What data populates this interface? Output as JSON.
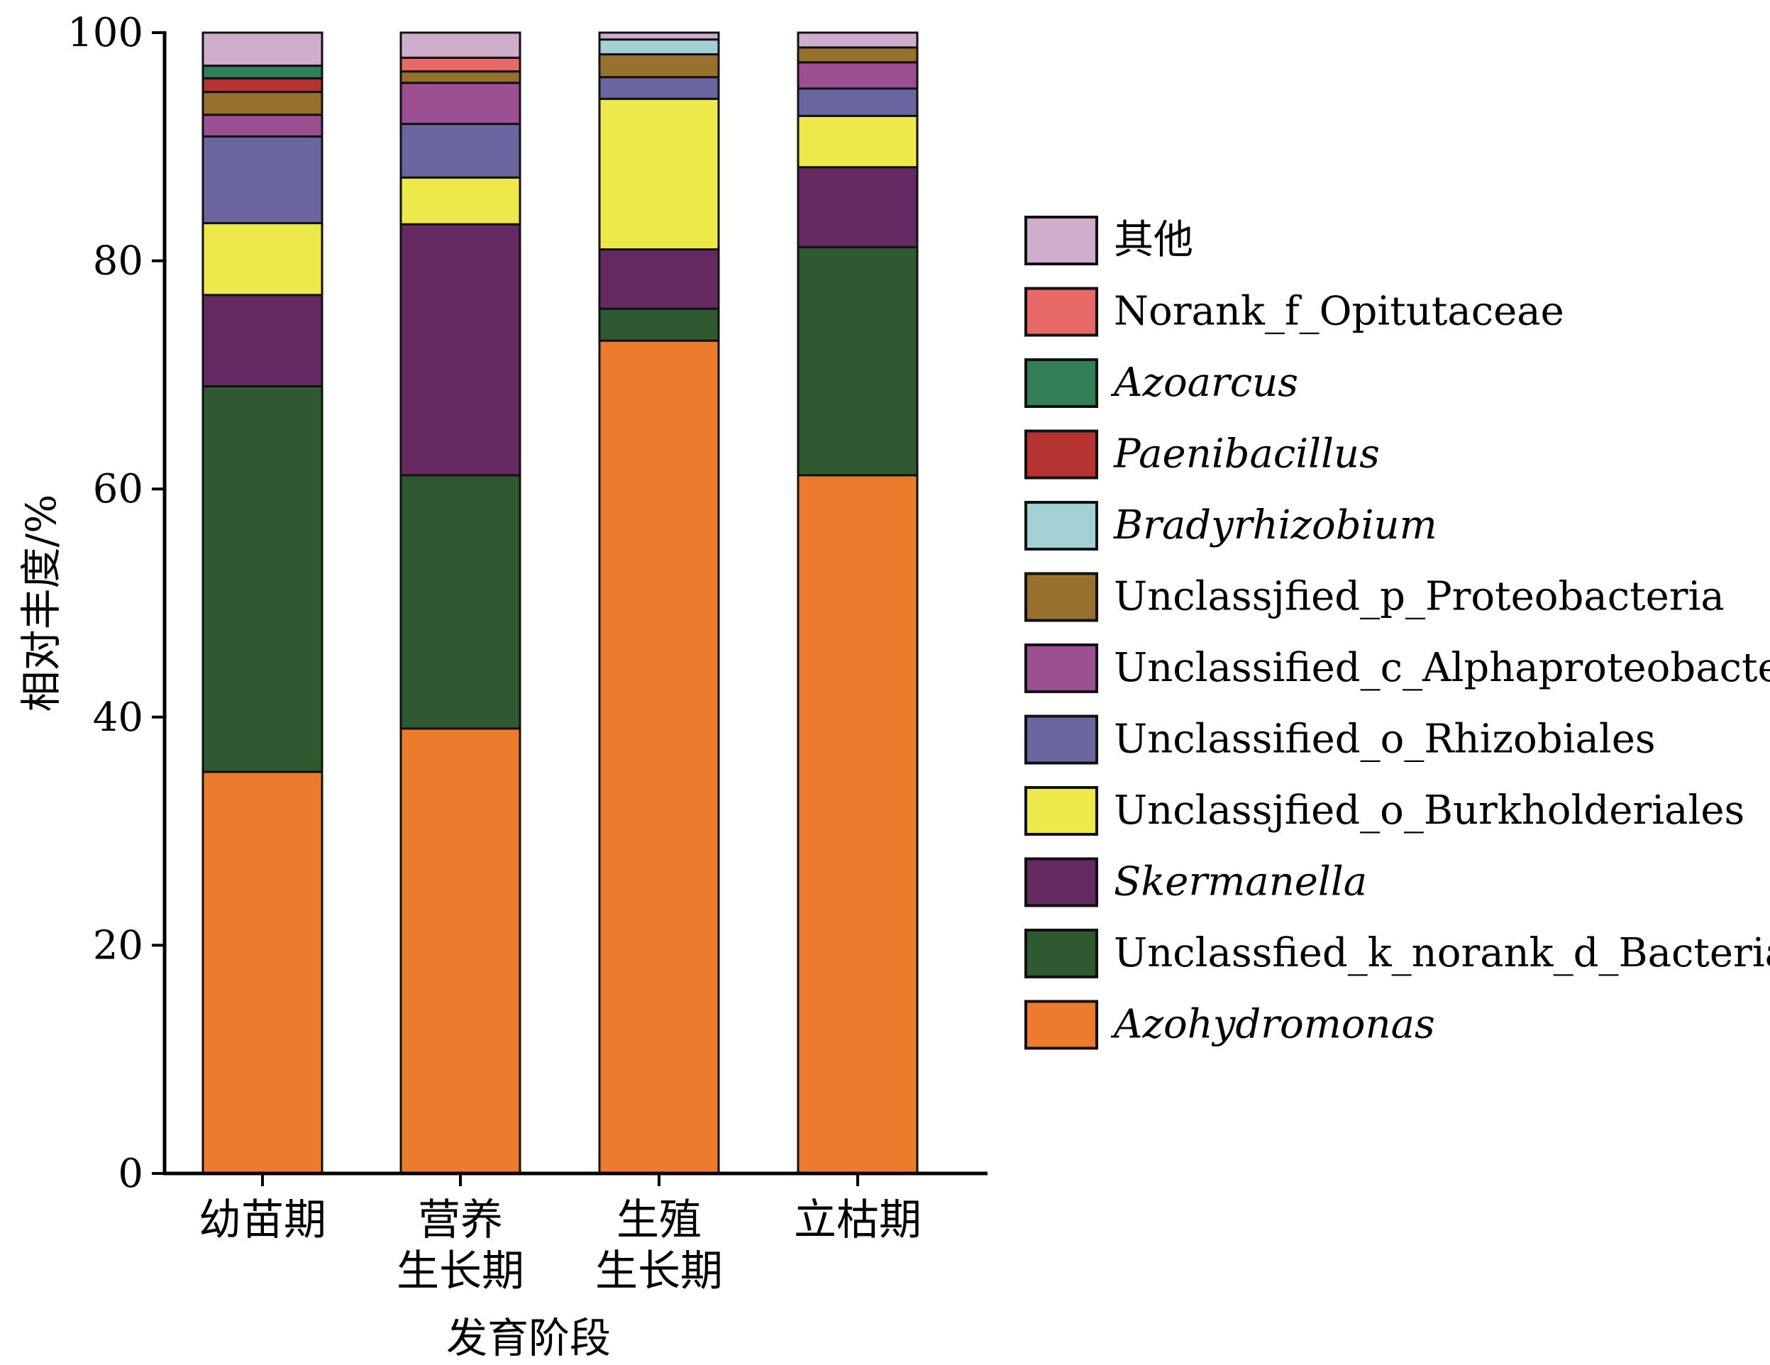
{
  "chart_data": {
    "type": "bar",
    "stacked": true,
    "xlabel": "发育阶段",
    "ylabel": "相对丰度/%",
    "ylim": [
      0,
      100
    ],
    "yticks": [
      "0",
      "20",
      "40",
      "60",
      "80",
      "100"
    ],
    "grid": false,
    "legend_position": "right",
    "categories": [
      [
        "幼苗期"
      ],
      [
        "营养",
        "生长期"
      ],
      [
        "生殖",
        "生长期"
      ],
      [
        "立枯期"
      ]
    ],
    "series": [
      {
        "name": "Azohydromonas",
        "color": "#ED7B2E",
        "italic": true,
        "values": [
          35.2,
          39.0,
          73.0,
          61.2
        ]
      },
      {
        "name": "Unclassfied_k_norank_d_Bacteria",
        "color": "#2F5931",
        "italic": false,
        "values": [
          33.8,
          22.2,
          2.8,
          20.0
        ]
      },
      {
        "name": "Skermanella",
        "color": "#662A62",
        "italic": true,
        "values": [
          8.0,
          22.0,
          5.2,
          7.0
        ]
      },
      {
        "name": "Unclassjfied_o_Burkholderiales",
        "color": "#EEE94A",
        "italic": false,
        "values": [
          6.3,
          4.1,
          13.2,
          4.5
        ]
      },
      {
        "name": "Unclassified_o_Rhizobiales",
        "color": "#6C66A0",
        "italic": false,
        "values": [
          7.6,
          4.7,
          1.9,
          2.4
        ]
      },
      {
        "name": "Unclassified_c_Alphaproteobacteria",
        "color": "#9C4F91",
        "italic": false,
        "values": [
          1.9,
          3.6,
          0.0,
          2.3
        ]
      },
      {
        "name": "Unclassjfied_p_Proteobacteria",
        "color": "#98712F",
        "italic": false,
        "values": [
          2.0,
          1.0,
          2.0,
          1.3
        ]
      },
      {
        "name": "Bradyrhizobium",
        "color": "#A3D1D3",
        "italic": true,
        "values": [
          0.0,
          0.0,
          1.3,
          0.0
        ]
      },
      {
        "name": "Paenibacillus",
        "color": "#B53330",
        "italic": true,
        "values": [
          1.2,
          0.0,
          0.0,
          0.0
        ]
      },
      {
        "name": "Azoarcus",
        "color": "#317E57",
        "italic": true,
        "values": [
          1.1,
          0.0,
          0.0,
          0.0
        ]
      },
      {
        "name": "Norank_f_Opitutaceae",
        "color": "#E76A69",
        "italic": false,
        "values": [
          0.0,
          1.2,
          0.0,
          0.0
        ]
      },
      {
        "name": "其他",
        "color": "#CFADCD",
        "italic": false,
        "values": [
          2.9,
          2.2,
          0.6,
          1.3
        ]
      }
    ]
  }
}
